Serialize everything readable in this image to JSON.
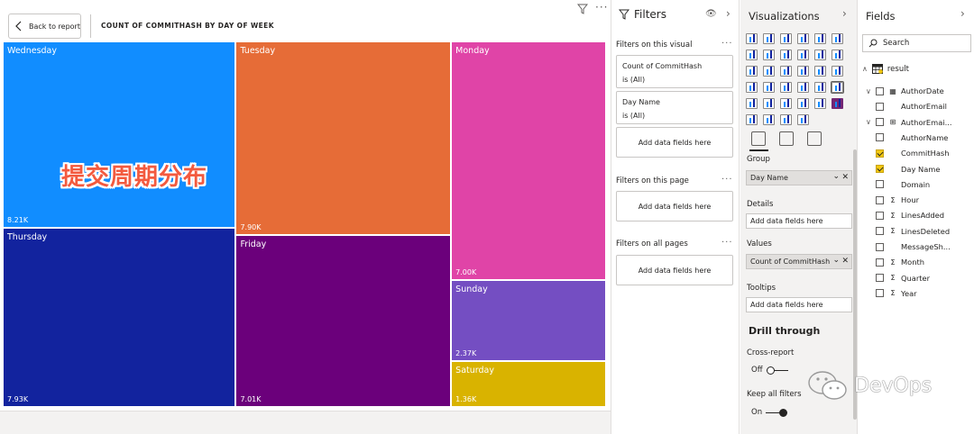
{
  "canvas": {
    "back_button": "Back to report",
    "visual_title": "COUNT OF COMMITHASH BY DAY OF WEEK",
    "more": "···"
  },
  "overlay_text": "提交周期分布",
  "chart_data": {
    "type": "treemap",
    "title": "COUNT OF COMMITHASH BY DAY OF WEEK",
    "categories": [
      "Wednesday",
      "Thursday",
      "Tuesday",
      "Friday",
      "Monday",
      "Sunday",
      "Saturday"
    ],
    "values": [
      8210,
      7930,
      7900,
      7010,
      7000,
      2370,
      1360
    ],
    "labels": [
      "8.21K",
      "7.93K",
      "7.90K",
      "7.01K",
      "7.00K",
      "2.37K",
      "1.36K"
    ],
    "colors": [
      "#118dff",
      "#12239e",
      "#e66c37",
      "#6b007b",
      "#e044a7",
      "#744ec2",
      "#d9b300"
    ]
  },
  "filters_pane": {
    "title": "Filters",
    "sections": [
      {
        "label": "Filters on this visual",
        "more": "···"
      },
      {
        "label": "Filters on this page",
        "more": "···"
      },
      {
        "label": "Filters on all pages",
        "more": "···"
      }
    ],
    "cards": [
      {
        "field": "Count of CommitHash",
        "state": "is (All)"
      },
      {
        "field": "Day Name",
        "state": "is (All)"
      }
    ],
    "add_label": "Add data fields here"
  },
  "viz_pane": {
    "title": "Visualizations",
    "wells": [
      {
        "label": "Group",
        "value": "Day Name"
      },
      {
        "label": "Details",
        "value": "Add data fields here"
      },
      {
        "label": "Values",
        "value": "Count of CommitHash"
      },
      {
        "label": "Tooltips",
        "value": "Add data fields here"
      }
    ],
    "drill_title": "Drill through",
    "cross_report": {
      "label": "Cross-report",
      "state": "Off"
    },
    "keep_filters": {
      "label": "Keep all filters",
      "state": "On"
    }
  },
  "fields_pane": {
    "title": "Fields",
    "search_placeholder": "Search",
    "table": "result",
    "fields": [
      {
        "name": "AuthorDate",
        "checked": false,
        "type": "table",
        "expandable": true
      },
      {
        "name": "AuthorEmail",
        "checked": false,
        "type": "",
        "expandable": false
      },
      {
        "name": "AuthorEmai...",
        "checked": false,
        "type": "hierarchy",
        "expandable": true
      },
      {
        "name": "AuthorName",
        "checked": false,
        "type": "",
        "expandable": false
      },
      {
        "name": "CommitHash",
        "checked": true,
        "type": "",
        "expandable": false
      },
      {
        "name": "Day Name",
        "checked": true,
        "type": "",
        "expandable": false
      },
      {
        "name": "Domain",
        "checked": false,
        "type": "",
        "expandable": false
      },
      {
        "name": "Hour",
        "checked": false,
        "type": "Σ",
        "expandable": false
      },
      {
        "name": "LinesAdded",
        "checked": false,
        "type": "Σ",
        "expandable": false
      },
      {
        "name": "LinesDeleted",
        "checked": false,
        "type": "Σ",
        "expandable": false
      },
      {
        "name": "MessageSh...",
        "checked": false,
        "type": "",
        "expandable": false
      },
      {
        "name": "Month",
        "checked": false,
        "type": "Σ",
        "expandable": false
      },
      {
        "name": "Quarter",
        "checked": false,
        "type": "Σ",
        "expandable": false
      },
      {
        "name": "Year",
        "checked": false,
        "type": "Σ",
        "expandable": false
      }
    ]
  },
  "watermark": "DevOps"
}
